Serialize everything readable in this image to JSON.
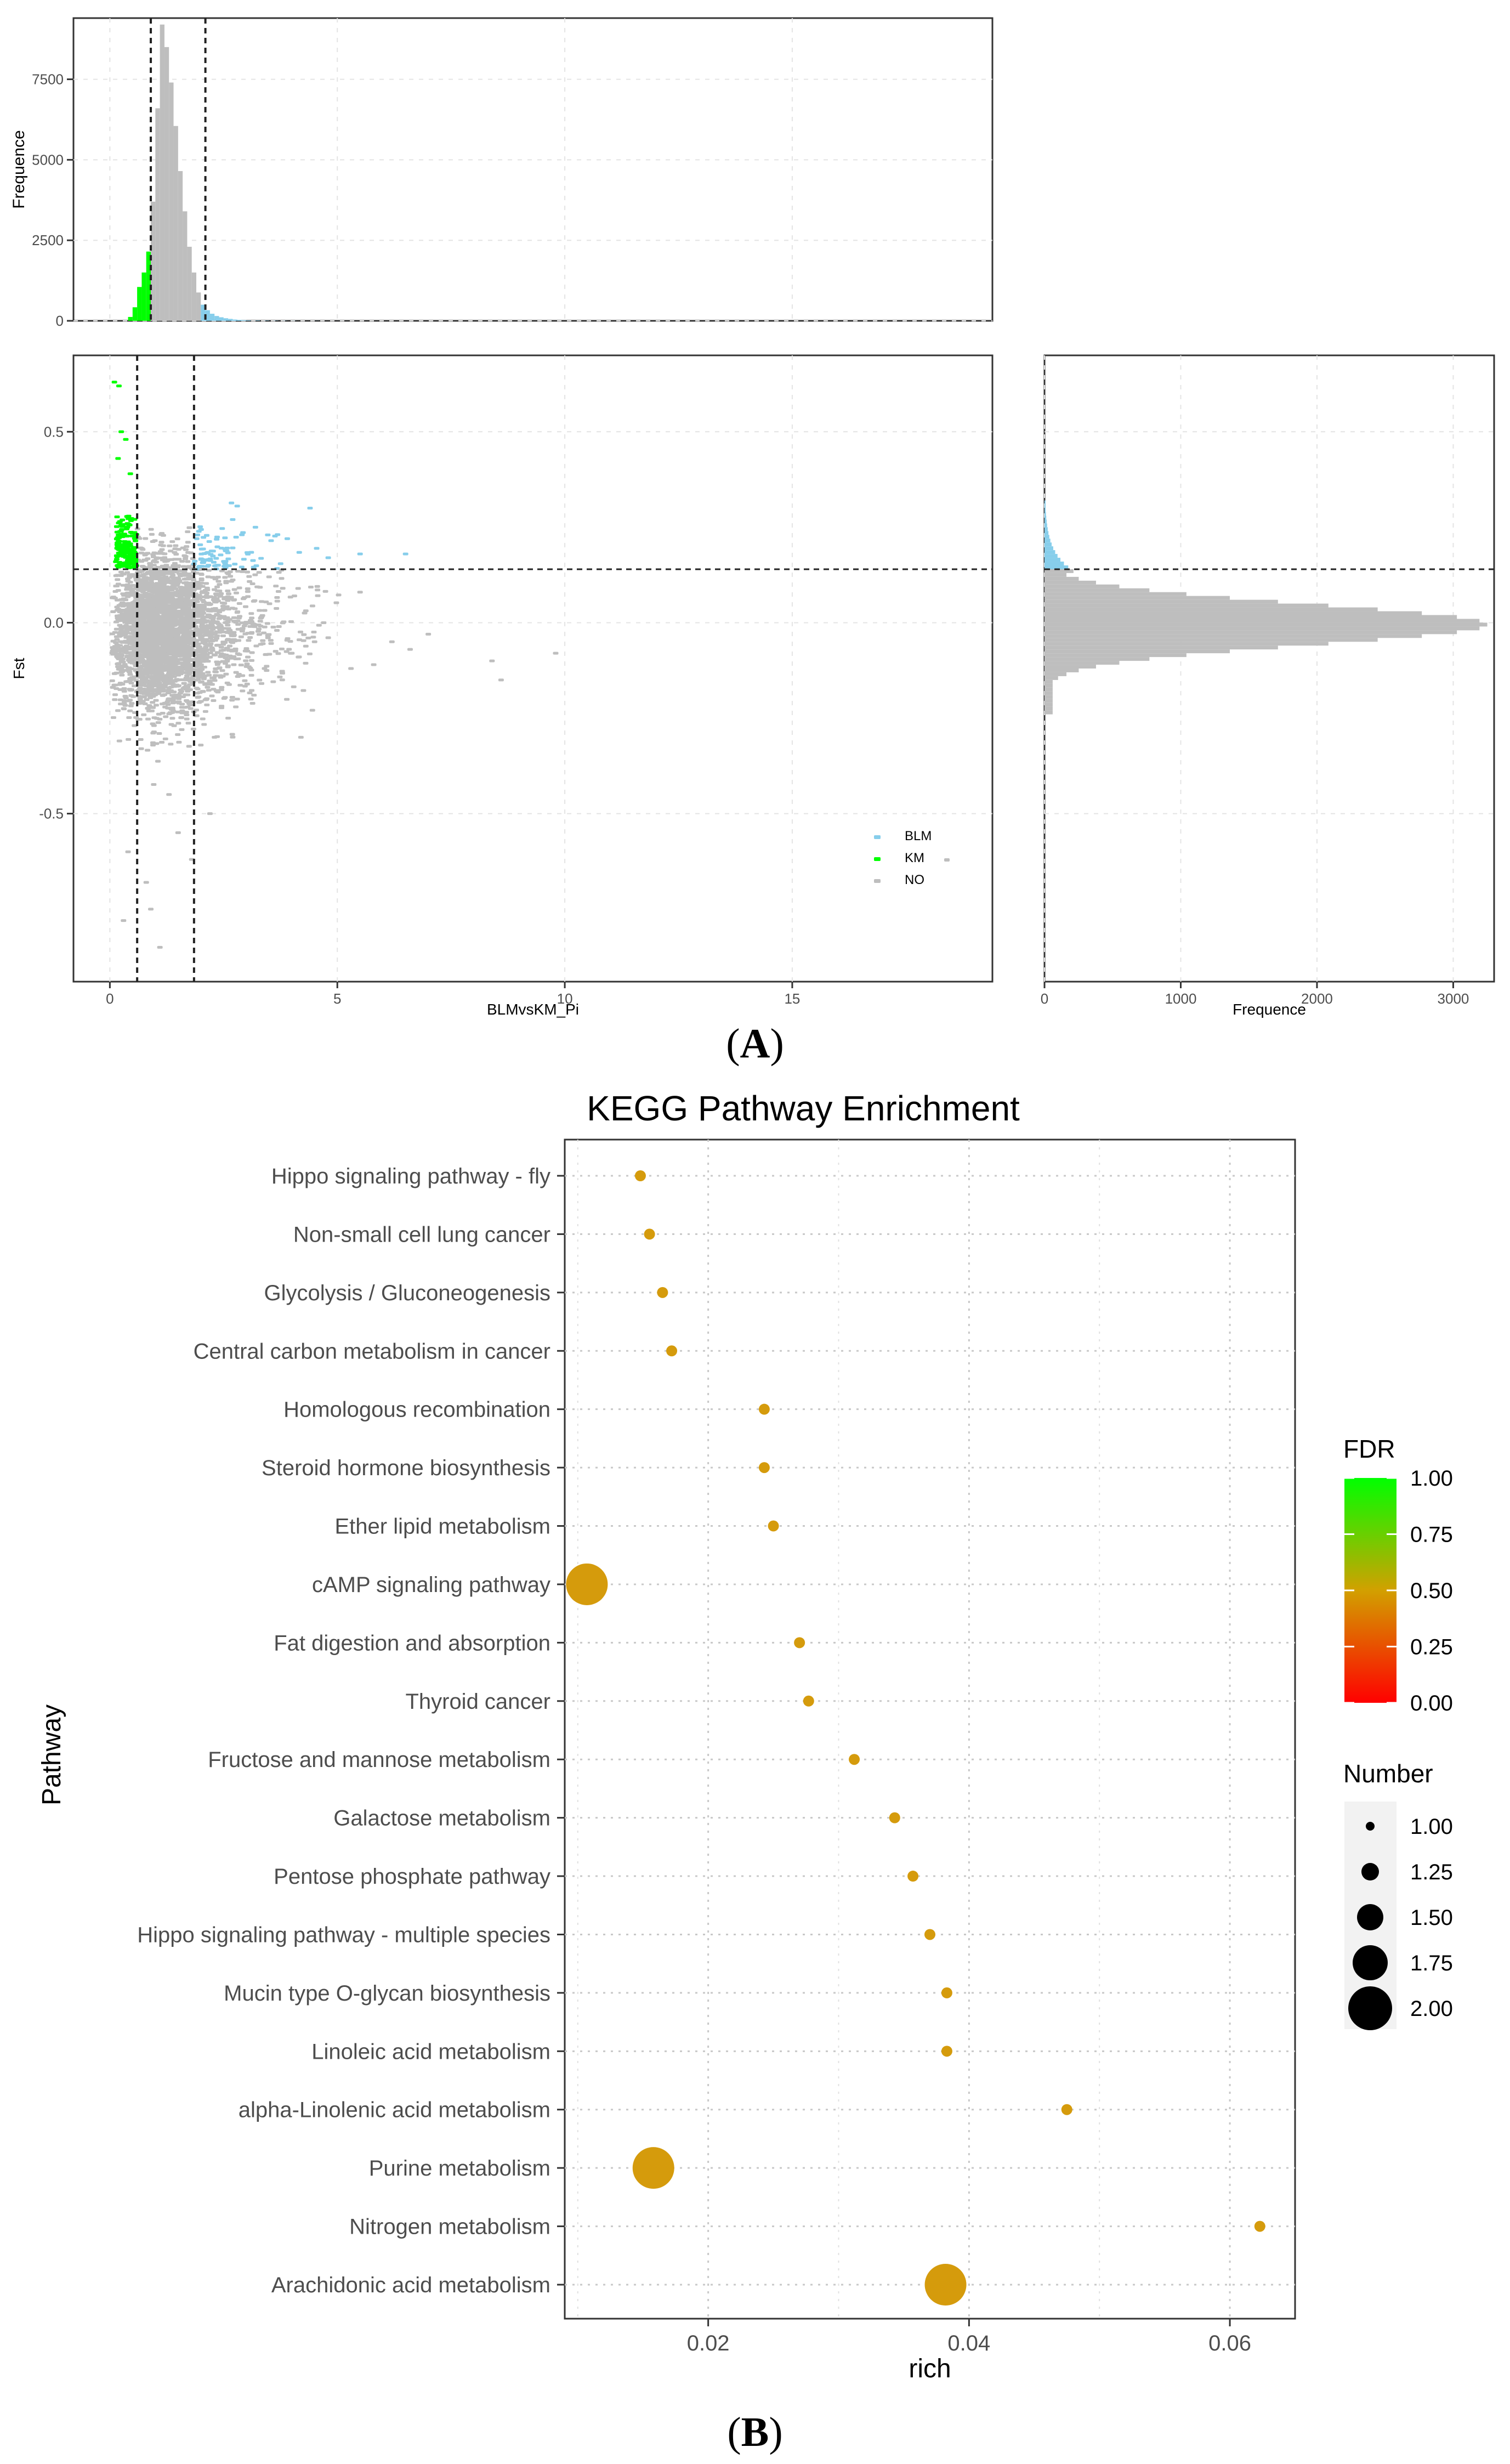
{
  "panel_a": {
    "label": "A",
    "colors": {
      "blm": "#87ceeb",
      "km": "#00ff00",
      "no": "#bebebe"
    },
    "thresholds": {
      "pi_low": 0.6,
      "pi_high": 1.85,
      "fst": 0.14
    },
    "top_hist": {
      "ylabel": "Frequence",
      "yticks": [
        "0",
        "2500",
        "5000",
        "7500"
      ],
      "ytick_values": [
        0,
        2500,
        5000,
        7500
      ],
      "ylim": [
        0,
        9400
      ]
    },
    "scatter": {
      "xlabel": "BLMvsKM_Pi",
      "ylabel": "Fst",
      "xticks": [
        "0",
        "5",
        "10",
        "15"
      ],
      "xtick_values": [
        0,
        5,
        10,
        15
      ],
      "yticks": [
        "-0.5",
        "0.0",
        "0.5"
      ],
      "ytick_values": [
        -0.5,
        0.0,
        0.5
      ],
      "xlim": [
        -0.8,
        19.4
      ],
      "ylim": [
        -0.94,
        0.7
      ],
      "legend": [
        {
          "key": "BLM",
          "label": "BLM",
          "color": "#87ceeb"
        },
        {
          "key": "KM",
          "label": "KM",
          "color": "#00ff00"
        },
        {
          "key": "NO",
          "label": "NO",
          "color": "#bebebe"
        }
      ]
    },
    "right_hist": {
      "xlabel": "Frequence",
      "xticks": [
        "0",
        "1000",
        "2000",
        "3000"
      ],
      "xtick_values": [
        0,
        1000,
        2000,
        3000
      ],
      "xlim": [
        0,
        3300
      ]
    }
  },
  "panel_b": {
    "label": "B",
    "chart_data": {
      "type": "scatter",
      "title": "KEGG Pathway Enrichment",
      "xlabel": "rich",
      "ylabel": "Pathway",
      "xlim": [
        0.009,
        0.065
      ],
      "xticks": [
        "0.02",
        "0.04",
        "0.06"
      ],
      "xtick_values": [
        0.02,
        0.04,
        0.06
      ],
      "pathways": [
        {
          "name": "Hippo signaling pathway - fly",
          "rich": 0.0148,
          "number": 1
        },
        {
          "name": "Non-small cell lung cancer",
          "rich": 0.0155,
          "number": 1
        },
        {
          "name": "Glycolysis / Gluconeogenesis",
          "rich": 0.0165,
          "number": 1
        },
        {
          "name": "Central carbon metabolism in cancer",
          "rich": 0.0172,
          "number": 1
        },
        {
          "name": "Homologous recombination",
          "rich": 0.0243,
          "number": 1
        },
        {
          "name": "Steroid hormone biosynthesis",
          "rich": 0.0243,
          "number": 1
        },
        {
          "name": "Ether lipid metabolism",
          "rich": 0.025,
          "number": 1
        },
        {
          "name": "cAMP signaling pathway",
          "rich": 0.0107,
          "number": 2
        },
        {
          "name": "Fat digestion and absorption",
          "rich": 0.027,
          "number": 1
        },
        {
          "name": "Thyroid cancer",
          "rich": 0.0277,
          "number": 1
        },
        {
          "name": "Fructose and mannose metabolism",
          "rich": 0.0312,
          "number": 1
        },
        {
          "name": "Galactose metabolism",
          "rich": 0.0343,
          "number": 1
        },
        {
          "name": "Pentose phosphate pathway",
          "rich": 0.0357,
          "number": 1
        },
        {
          "name": "Hippo signaling pathway - multiple species",
          "rich": 0.037,
          "number": 1
        },
        {
          "name": "Mucin type O-glycan biosynthesis",
          "rich": 0.0383,
          "number": 1
        },
        {
          "name": "Linoleic acid metabolism",
          "rich": 0.0383,
          "number": 1
        },
        {
          "name": "alpha-Linolenic acid metabolism",
          "rich": 0.0475,
          "number": 1
        },
        {
          "name": "Purine metabolism",
          "rich": 0.0158,
          "number": 2
        },
        {
          "name": "Nitrogen metabolism",
          "rich": 0.0623,
          "number": 1
        },
        {
          "name": "Arachidonic acid metabolism",
          "rich": 0.0382,
          "number": 2
        }
      ],
      "point_color": "#d59b0c",
      "legend_fdr": {
        "title": "FDR",
        "ticks": [
          "1.00",
          "0.75",
          "0.50",
          "0.25",
          "0.00"
        ],
        "tick_values": [
          1.0,
          0.75,
          0.5,
          0.25,
          0.0
        ],
        "colors": [
          "#00ff00",
          "#ffa500",
          "#ff0000"
        ]
      },
      "legend_number": {
        "title": "Number",
        "ticks": [
          "1.00",
          "1.25",
          "1.50",
          "1.75",
          "2.00"
        ],
        "tick_values": [
          1.0,
          1.25,
          1.5,
          1.75,
          2.0
        ]
      }
    }
  }
}
